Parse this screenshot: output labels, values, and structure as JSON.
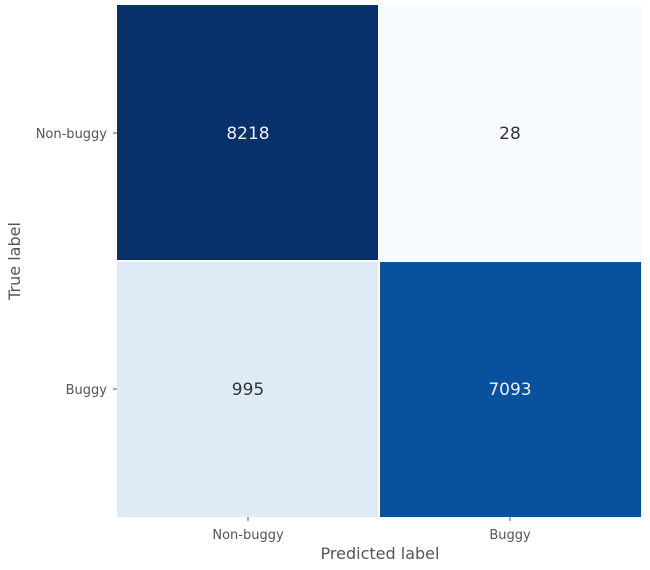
{
  "chart_data": {
    "type": "heatmap",
    "title": "",
    "xlabel": "Predicted label",
    "ylabel": "True label",
    "x_categories": [
      "Non-buggy",
      "Buggy"
    ],
    "y_categories": [
      "Non-buggy",
      "Buggy"
    ],
    "values": [
      [
        8218,
        28
      ],
      [
        995,
        7093
      ]
    ],
    "colormap": "Blues",
    "vmin": 28,
    "vmax": 8218,
    "colorbar": false,
    "grid": false,
    "cell_colors": [
      [
        "#08306b",
        "#f7fbff"
      ],
      [
        "#deebf7",
        "#08519c"
      ]
    ],
    "cell_text_colors": [
      [
        "#f0f0f0",
        "#333333"
      ],
      [
        "#333333",
        "#f0f0f0"
      ]
    ],
    "label_color": "#555555",
    "cell_separator_color": "#ffffff"
  }
}
